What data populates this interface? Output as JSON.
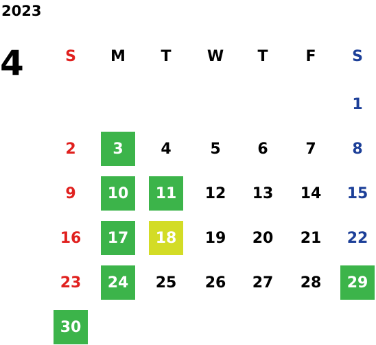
{
  "year": "2023",
  "month": "4",
  "weekdays": [
    "S",
    "M",
    "T",
    "W",
    "T",
    "F",
    "S"
  ],
  "column_colors": [
    "#e0201e",
    "#000000",
    "#000000",
    "#000000",
    "#000000",
    "#000000",
    "#1c3f98"
  ],
  "weeks": [
    [
      null,
      null,
      null,
      null,
      null,
      null,
      {
        "day": 1
      }
    ],
    [
      {
        "day": 2
      },
      {
        "day": 3,
        "fill": "#3cb44a"
      },
      {
        "day": 4
      },
      {
        "day": 5
      },
      {
        "day": 6
      },
      {
        "day": 7
      },
      {
        "day": 8
      }
    ],
    [
      {
        "day": 9
      },
      {
        "day": 10,
        "fill": "#3cb44a"
      },
      {
        "day": 11,
        "fill": "#3cb44a"
      },
      {
        "day": 12
      },
      {
        "day": 13
      },
      {
        "day": 14
      },
      {
        "day": 15
      }
    ],
    [
      {
        "day": 16
      },
      {
        "day": 17,
        "fill": "#3cb44a"
      },
      {
        "day": 18,
        "fill": "#d3dc26"
      },
      {
        "day": 19
      },
      {
        "day": 20
      },
      {
        "day": 21
      },
      {
        "day": 22
      }
    ],
    [
      {
        "day": 23
      },
      {
        "day": 24,
        "fill": "#3cb44a"
      },
      {
        "day": 25
      },
      {
        "day": 26
      },
      {
        "day": 27
      },
      {
        "day": 28
      },
      {
        "day": 29,
        "fill": "#3cb44a"
      }
    ],
    [
      {
        "day": 30,
        "fill": "#3cb44a"
      },
      null,
      null,
      null,
      null,
      null,
      null
    ]
  ]
}
